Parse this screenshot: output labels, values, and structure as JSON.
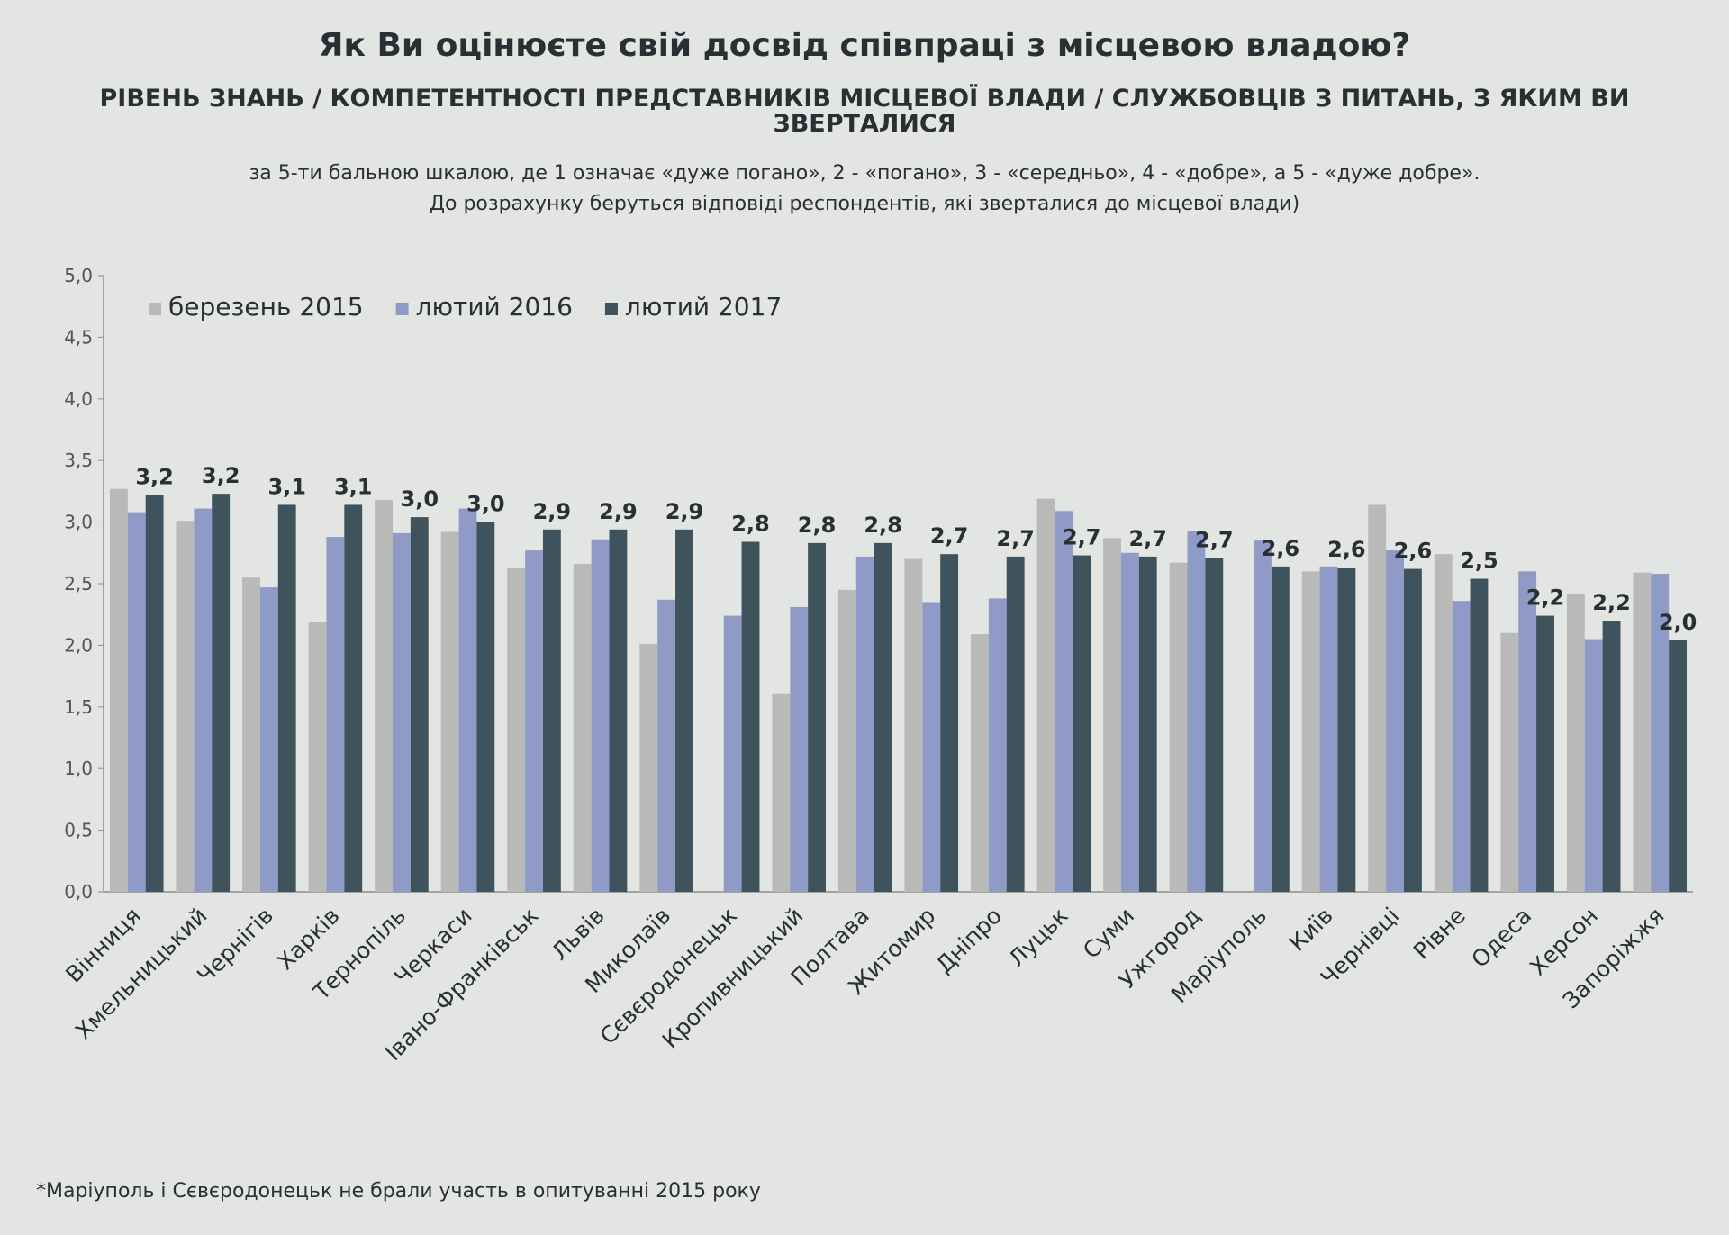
{
  "title": "Як Ви оцінюєте свій досвід співпраці з місцевою владою?",
  "subtitle": "Рівень знань / компетентності представників місцевої влади / службовців з питань, з яким ви зверталися",
  "notes": [
    "за 5-ти бальною шкалою, де 1 означає «дуже погано», 2 - «погано», 3 - «середньо», 4 - «добре», а 5 - «дуже добре».",
    "До розрахунку беруться відповіді респондентів, які зверталися до місцевої влади)"
  ],
  "footnote": "*Маріуполь і Сєвєродонецьк не брали участь в опитуванні 2015 року",
  "chart_data": {
    "type": "bar",
    "categories": [
      "Вінниця",
      "Хмельницький",
      "Чернігів",
      "Харків",
      "Тернопіль",
      "Черкаси",
      "Івано-Франківськ",
      "Львів",
      "Миколаїв",
      "Сєвєродонецьк",
      "Кропивницький",
      "Полтава",
      "Житомир",
      "Дніпро",
      "Луцьк",
      "Суми",
      "Ужгород",
      "Маріуполь",
      "Київ",
      "Чернівці",
      "Рівне",
      "Одеса",
      "Херсон",
      "Запоріжжя"
    ],
    "series": [
      {
        "name": "березень 2015",
        "color": "#b9b9b7",
        "values": [
          3.27,
          3.01,
          2.55,
          2.19,
          3.18,
          2.92,
          2.63,
          2.66,
          2.01,
          null,
          1.61,
          2.45,
          2.7,
          2.09,
          3.19,
          2.87,
          2.67,
          null,
          2.6,
          3.14,
          2.74,
          2.1,
          2.42,
          2.59
        ]
      },
      {
        "name": "лютий 2016",
        "color": "#8f9bc6",
        "values": [
          3.08,
          3.11,
          2.47,
          2.88,
          2.91,
          3.11,
          2.77,
          2.86,
          2.37,
          2.24,
          2.31,
          2.72,
          2.35,
          2.38,
          3.09,
          2.75,
          2.93,
          2.85,
          2.64,
          2.77,
          2.36,
          2.6,
          2.05,
          2.58
        ]
      },
      {
        "name": "лютий 2017",
        "color": "#3e535c",
        "values": [
          3.22,
          3.23,
          3.14,
          3.14,
          3.04,
          3.0,
          2.94,
          2.94,
          2.94,
          2.84,
          2.83,
          2.83,
          2.74,
          2.72,
          2.73,
          2.72,
          2.71,
          2.64,
          2.63,
          2.62,
          2.54,
          2.24,
          2.2,
          2.04
        ],
        "value_labels": [
          "3,2",
          "3,2",
          "3,1",
          "3,1",
          "3,0",
          "3,0",
          "2,9",
          "2,9",
          "2,9",
          "2,8",
          "2,8",
          "2,8",
          "2,7",
          "2,7",
          "2,7",
          "2,7",
          "2,7",
          "2,6",
          "2,6",
          "2,6",
          "2,5",
          "2,2",
          "2,2",
          "2,0"
        ]
      }
    ],
    "ylim": [
      0,
      5
    ],
    "yticks": [
      {
        "value": 0,
        "label": "0,0"
      },
      {
        "value": 0.5,
        "label": "0,5"
      },
      {
        "value": 1,
        "label": "1,0"
      },
      {
        "value": 1.5,
        "label": "1,5"
      },
      {
        "value": 2,
        "label": "2,0"
      },
      {
        "value": 2.5,
        "label": "2,5"
      },
      {
        "value": 3,
        "label": "3,0"
      },
      {
        "value": 3.5,
        "label": "3,5"
      },
      {
        "value": 4,
        "label": "4,0"
      },
      {
        "value": 4.5,
        "label": "4,5"
      },
      {
        "value": 5,
        "label": "5,0"
      }
    ],
    "grid": false,
    "legend": "upper left"
  }
}
